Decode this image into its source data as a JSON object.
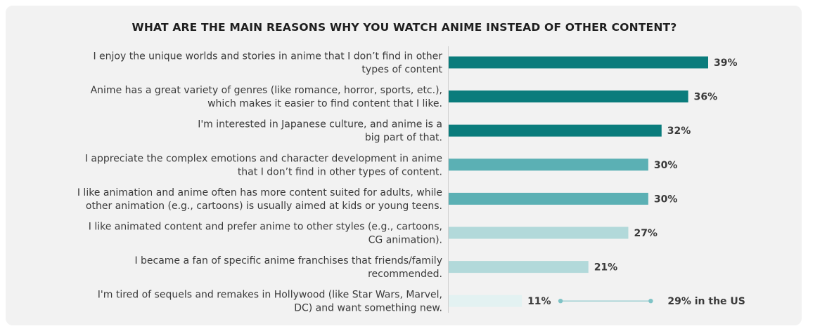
{
  "chart_data": {
    "type": "bar",
    "orientation": "horizontal",
    "title": "WHAT ARE THE MAIN REASONS WHY YOU WATCH ANIME INSTEAD OF OTHER CONTENT?",
    "categories": [
      [
        "I enjoy the unique worlds and stories in anime that I don’t find in other",
        "types of content"
      ],
      [
        "Anime has a great variety of genres (like romance, horror, sports, etc.),",
        "which makes it easier to find content that I like."
      ],
      [
        "I'm interested in Japanese culture, and anime is a",
        "big part of that."
      ],
      [
        "I appreciate the complex emotions and character development in anime",
        "that I don’t find in other types of content."
      ],
      [
        "I like animation and anime often has more content suited for adults, while",
        "other animation (e.g., cartoons) is usually aimed at kids or young teens."
      ],
      [
        "I like animated content and prefer anime to other styles (e.g., cartoons,",
        "CG animation)."
      ],
      [
        "I became a fan of specific anime franchises that friends/family",
        "recommended."
      ],
      [
        "I'm tired of sequels and remakes in Hollywood (like Star Wars, Marvel,",
        "DC) and want something new."
      ]
    ],
    "values": [
      39,
      36,
      32,
      30,
      30,
      27,
      21,
      11
    ],
    "value_labels": [
      "39%",
      "36%",
      "32%",
      "30%",
      "30%",
      "27%",
      "21%",
      "11%"
    ],
    "bar_colors": [
      "#0a7c7c",
      "#0a7c7c",
      "#0a7c7c",
      "#5bb0b4",
      "#5bb0b4",
      "#b2d9da",
      "#b2d9da",
      "#e3f2f2"
    ],
    "annotation": {
      "category_index": 7,
      "value": 29,
      "text": "29% in the US",
      "color": "#7fc3c6"
    },
    "xlim": [
      0,
      39
    ],
    "grid": false,
    "legend": "none",
    "xlabel": "",
    "ylabel": ""
  }
}
